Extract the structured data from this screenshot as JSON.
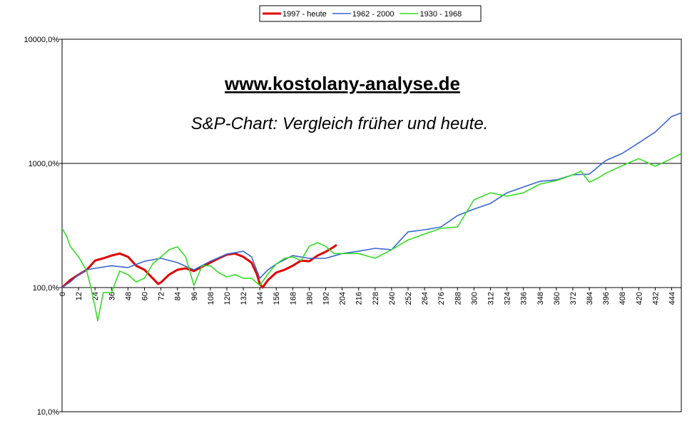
{
  "chart_data": {
    "type": "line",
    "log_y": true,
    "grid": true,
    "legend": "top",
    "title": "www.kostolany-analyse.de",
    "subtitle": "S&P-Chart: Vergleich früher und heute.",
    "xlim": [
      0,
      451
    ],
    "xticks": [
      0,
      12,
      24,
      36,
      48,
      60,
      72,
      84,
      96,
      108,
      120,
      132,
      144,
      156,
      168,
      180,
      192,
      204,
      216,
      228,
      240,
      252,
      264,
      276,
      288,
      300,
      312,
      324,
      336,
      348,
      360,
      372,
      384,
      396,
      408,
      420,
      432,
      444
    ],
    "ylim": [
      10,
      10000
    ],
    "yticks": [
      {
        "value": 10,
        "label": "10,0%"
      },
      {
        "value": 100,
        "label": "100,0%"
      },
      {
        "value": 1000,
        "label": "1000,0%"
      },
      {
        "value": 10000,
        "label": "10000,0%"
      }
    ],
    "series": [
      {
        "name": "1997 - heute",
        "color": "#e00000",
        "width": 3,
        "x": [
          0,
          6,
          12,
          18,
          24,
          30,
          36,
          42,
          48,
          54,
          60,
          66,
          70,
          72,
          78,
          84,
          90,
          96,
          102,
          108,
          114,
          120,
          126,
          132,
          138,
          142,
          144,
          146,
          150,
          156,
          162,
          168,
          174,
          180,
          186,
          192,
          198,
          200
        ],
        "values": [
          100,
          115,
          127,
          139,
          165,
          172,
          181,
          188,
          177,
          150,
          139,
          119,
          107,
          110,
          127,
          139,
          143,
          136,
          147,
          159,
          172,
          184,
          188,
          177,
          159,
          127,
          107,
          100,
          115,
          132,
          139,
          150,
          165,
          163,
          181,
          194,
          213,
          221
        ]
      },
      {
        "name": "1962 - 2000",
        "color": "#3a66d0",
        "width": 1.6,
        "x": [
          0,
          6,
          12,
          18,
          24,
          36,
          48,
          60,
          72,
          84,
          96,
          108,
          120,
          132,
          138,
          144,
          150,
          156,
          168,
          180,
          192,
          204,
          216,
          228,
          240,
          252,
          264,
          276,
          288,
          300,
          312,
          324,
          336,
          348,
          360,
          372,
          384,
          396,
          408,
          420,
          432,
          444,
          451
        ],
        "values": [
          100,
          111,
          127,
          139,
          143,
          150,
          145,
          163,
          172,
          159,
          139,
          163,
          186,
          196,
          177,
          119,
          139,
          155,
          181,
          172,
          172,
          188,
          196,
          207,
          202,
          281,
          292,
          308,
          380,
          429,
          476,
          580,
          645,
          717,
          737,
          809,
          820,
          1054,
          1204,
          1463,
          1787,
          2389,
          2550
        ]
      },
      {
        "name": "1930 - 1968",
        "color": "#33dd22",
        "width": 1.6,
        "x": [
          0,
          3,
          6,
          12,
          18,
          21,
          24,
          26,
          30,
          36,
          42,
          48,
          54,
          60,
          66,
          72,
          78,
          84,
          90,
          96,
          102,
          108,
          114,
          120,
          126,
          132,
          138,
          144,
          150,
          156,
          162,
          168,
          174,
          180,
          186,
          192,
          198,
          204,
          216,
          228,
          240,
          252,
          264,
          276,
          288,
          300,
          312,
          324,
          336,
          348,
          360,
          372,
          378,
          384,
          390,
          396,
          408,
          420,
          432,
          444,
          451
        ],
        "values": [
          300,
          263,
          215,
          177,
          136,
          100,
          70,
          54,
          91,
          91,
          136,
          127,
          111,
          119,
          155,
          177,
          202,
          213,
          177,
          104,
          150,
          150,
          132,
          122,
          127,
          119,
          119,
          104,
          129,
          155,
          172,
          177,
          165,
          215,
          230,
          215,
          188,
          188,
          188,
          172,
          202,
          242,
          270,
          300,
          308,
          509,
          580,
          544,
          580,
          681,
          727,
          809,
          865,
          706,
          757,
          833,
          960,
          1093,
          948,
          1093,
          1204
        ]
      }
    ]
  }
}
